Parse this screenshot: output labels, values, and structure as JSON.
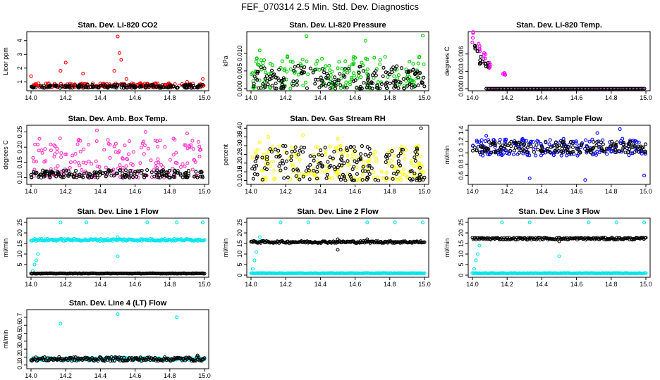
{
  "figure": {
    "title": "FEF_070314  2.5 Min. Std. Dev. Diagnostics"
  },
  "chart_data": [
    {
      "type": "scatter",
      "title": "Stan. Dev. Li-820 CO2",
      "xlabel": "",
      "ylabel": "Licor ppm",
      "xlim": [
        14.0,
        15.0
      ],
      "ylim": [
        0.5,
        4.5
      ],
      "xticks": [
        "14.0",
        "14.2",
        "14.4",
        "14.6",
        "14.8",
        "15.0"
      ],
      "yticks": [
        "1",
        "2",
        "3",
        "4"
      ],
      "series": [
        {
          "color": "#ff0000",
          "profile": {
            "base": [
              0.6,
              0.9
            ],
            "spikes": [
              [
                14.2,
                2.4
              ],
              [
                14.17,
                1.8
              ],
              [
                14.3,
                1.6
              ],
              [
                14.5,
                4.3
              ],
              [
                14.51,
                3.1
              ],
              [
                14.52,
                2.6
              ],
              [
                14.48,
                1.8
              ],
              [
                14.55,
                1.2
              ],
              [
                14.0,
                1.4
              ],
              [
                14.9,
                1.0
              ],
              [
                14.99,
                1.2
              ]
            ]
          }
        },
        {
          "color": "#000000",
          "profile": {
            "base": [
              0.55,
              0.8
            ],
            "spikes": []
          }
        }
      ]
    },
    {
      "type": "scatter",
      "title": "Stan. Dev. Li-820 Pressure",
      "xlabel": "",
      "ylabel": "kPa",
      "xlim": [
        14.0,
        15.0
      ],
      "ylim": [
        0.0,
        0.0155
      ],
      "xticks": [
        "14.0",
        "14.2",
        "14.4",
        "14.6",
        "14.8",
        "15.0"
      ],
      "yticks": [
        "0.000",
        "0.005",
        "0.010"
      ],
      "series": [
        {
          "color": "#00cc00",
          "profile": {
            "base": [
              0.0,
              0.0095
            ],
            "spikes": [
              [
                14.32,
                0.0148
              ],
              [
                14.66,
                0.0135
              ],
              [
                14.99,
                0.015
              ],
              [
                14.05,
                0.0108
              ]
            ]
          }
        },
        {
          "color": "#000000",
          "profile": {
            "base": [
              0.0,
              0.0065
            ],
            "spikes": []
          }
        }
      ]
    },
    {
      "type": "scatter",
      "title": "Stan. Dev. Li-820 Temp.",
      "xlabel": "",
      "ylabel": "degrees C",
      "xlim": [
        14.0,
        15.0
      ],
      "ylim": [
        0.0,
        0.0095
      ],
      "xticks": [
        "14.0",
        "14.2",
        "14.4",
        "14.6",
        "14.8",
        "15.0"
      ],
      "yticks": [
        "0.000",
        "0.003",
        "0.006"
      ],
      "series": [
        {
          "color": "#ff00ff",
          "profile": {
            "decay": [
              [
                14.0,
                0.0092
              ],
              [
                14.04,
                0.007
              ],
              [
                14.07,
                0.0055
              ],
              [
                14.1,
                0.004
              ],
              [
                14.18,
                0.0028
              ]
            ],
            "flat": 0.0
          }
        },
        {
          "color": "#000000",
          "profile": {
            "decay": [
              [
                14.02,
                0.0068
              ],
              [
                14.05,
                0.005
              ],
              [
                14.08,
                0.004
              ]
            ],
            "flat": 0.0
          }
        }
      ]
    },
    {
      "type": "scatter",
      "title": "Stan. Dev. Amb. Box Temp.",
      "xlabel": "",
      "ylabel": "degrees C",
      "xlim": [
        14.0,
        15.0
      ],
      "ylim": [
        0.085,
        0.265
      ],
      "xticks": [
        "14.0",
        "14.2",
        "14.4",
        "14.6",
        "14.8",
        "15.0"
      ],
      "yticks": [
        "0.10",
        "0.15",
        "0.20",
        "0.25"
      ],
      "series": [
        {
          "color": "#ff33cc",
          "profile": {
            "base": [
              0.1,
              0.23
            ],
            "spikes": [
              [
                14.38,
                0.255
              ],
              [
                14.66,
                0.25
              ],
              [
                14.9,
                0.245
              ]
            ]
          }
        },
        {
          "color": "#000000",
          "profile": {
            "base": [
              0.1,
              0.125
            ],
            "spikes": []
          }
        }
      ]
    },
    {
      "type": "scatter",
      "title": "Stan. Dev. Gas Stream RH",
      "xlabel": "",
      "ylabel": "percent",
      "xlim": [
        14.0,
        15.0
      ],
      "ylim": [
        0.09,
        0.405
      ],
      "xticks": [
        "14.0",
        "14.2",
        "14.4",
        "14.6",
        "14.8",
        "15.0"
      ],
      "yticks": [
        "0.10",
        "0.15",
        "0.20",
        "0.25",
        "0.30",
        "0.35",
        "0.40"
      ],
      "series": [
        {
          "color": "#ffff00",
          "profile": {
            "base": [
              0.1,
              0.3
            ],
            "spikes": [
              [
                14.05,
                0.32
              ],
              [
                14.1,
                0.35
              ],
              [
                14.3,
                0.36
              ],
              [
                14.5,
                0.34
              ]
            ]
          }
        },
        {
          "color": "#000000",
          "profile": {
            "base": [
              0.1,
              0.3
            ],
            "spikes": [
              [
                14.98,
                0.4
              ]
            ]
          }
        }
      ]
    },
    {
      "type": "scatter",
      "title": "Stan. Dev. Sample Flow",
      "xlabel": "",
      "ylabel": "ml/min",
      "xlim": [
        14.0,
        15.0
      ],
      "ylim": [
        0.48,
        1.45
      ],
      "xticks": [
        "14.0",
        "14.2",
        "14.4",
        "14.6",
        "14.8",
        "15.0"
      ],
      "yticks": [
        "0.6",
        "0.8",
        "1.0",
        "1.2",
        "1.4"
      ],
      "series": [
        {
          "color": "#0000ff",
          "profile": {
            "base": [
              0.95,
              1.25
            ],
            "spikes": [
              [
                14.33,
                0.55
              ],
              [
                14.65,
                0.52
              ],
              [
                14.99,
                0.6
              ],
              [
                14.85,
                1.42
              ],
              [
                14.72,
                1.35
              ],
              [
                14.08,
                1.3
              ]
            ]
          }
        },
        {
          "color": "#000000",
          "profile": {
            "base": [
              1.0,
              1.2
            ],
            "spikes": []
          }
        }
      ]
    },
    {
      "type": "scatter",
      "title": "Stan. Dev. Line 1 Flow",
      "xlabel": "",
      "ylabel": "ml/min",
      "xlim": [
        14.0,
        15.0
      ],
      "ylim": [
        0,
        26
      ],
      "xticks": [
        "14.0",
        "14.2",
        "14.4",
        "14.6",
        "14.8",
        "15.0"
      ],
      "yticks": [
        "5",
        "10",
        "15",
        "20",
        "25"
      ],
      "series": [
        {
          "color": "#00e5ee",
          "profile": {
            "band": [
              16.2,
              17.2
            ],
            "ramp": [
              [
                14.01,
                2
              ],
              [
                14.02,
                5
              ],
              [
                14.03,
                7
              ],
              [
                14.04,
                10
              ]
            ],
            "spikes": [
              [
                14.17,
                25
              ],
              [
                14.32,
                25
              ],
              [
                14.67,
                25
              ],
              [
                14.84,
                25
              ],
              [
                14.99,
                25
              ],
              [
                14.5,
                9
              ],
              [
                14.5,
                18
              ]
            ]
          }
        },
        {
          "color": "#000000",
          "profile": {
            "band": [
              0.7,
              0.9
            ],
            "ramp": [],
            "spikes": []
          }
        }
      ]
    },
    {
      "type": "scatter",
      "title": "Stan. Dev. Line 2 Flow",
      "xlabel": "",
      "ylabel": "ml/min",
      "xlim": [
        14.0,
        15.0
      ],
      "ylim": [
        0,
        26
      ],
      "xticks": [
        "14.0",
        "14.2",
        "14.4",
        "14.6",
        "14.8",
        "15.0"
      ],
      "yticks": [
        "0",
        "5",
        "10",
        "15",
        "20",
        "25"
      ],
      "series": [
        {
          "color": "#00e5ee",
          "profile": {
            "band": [
              0.8,
              1.0
            ],
            "ramp": [
              [
                14.01,
                3
              ],
              [
                14.02,
                7
              ],
              [
                14.03,
                11
              ],
              [
                14.04,
                16
              ]
            ],
            "spikes": [
              [
                14.17,
                25
              ],
              [
                14.33,
                25
              ],
              [
                14.67,
                25
              ],
              [
                14.83,
                25
              ],
              [
                14.99,
                25
              ],
              [
                14.05,
                18
              ]
            ]
          }
        },
        {
          "color": "#000000",
          "profile": {
            "band": [
              15.2,
              16.2
            ],
            "ramp": [],
            "spikes": [
              [
                14.5,
                12
              ],
              [
                14.5,
                17
              ],
              [
                14.67,
                17
              ]
            ]
          }
        }
      ]
    },
    {
      "type": "scatter",
      "title": "Stan. Dev. Line 3 Flow",
      "xlabel": "",
      "ylabel": "ml/min",
      "xlim": [
        14.0,
        15.0
      ],
      "ylim": [
        0,
        26
      ],
      "xticks": [
        "14.0",
        "14.2",
        "14.4",
        "14.6",
        "14.8",
        "15.0"
      ],
      "yticks": [
        "0",
        "5",
        "10",
        "15",
        "20",
        "25"
      ],
      "series": [
        {
          "color": "#00e5ee",
          "profile": {
            "band": [
              0.8,
              1.0
            ],
            "ramp": [
              [
                14.01,
                3
              ],
              [
                14.02,
                7
              ],
              [
                14.03,
                10
              ],
              [
                14.04,
                14
              ]
            ],
            "spikes": [
              [
                14.17,
                25
              ],
              [
                14.33,
                25
              ],
              [
                14.67,
                25
              ],
              [
                14.83,
                25
              ],
              [
                14.99,
                25
              ],
              [
                14.5,
                9
              ]
            ]
          }
        },
        {
          "color": "#000000",
          "profile": {
            "band": [
              16.8,
              17.8
            ],
            "ramp": [],
            "spikes": [
              [
                14.5,
                16
              ]
            ]
          }
        }
      ]
    },
    {
      "type": "scatter",
      "title": "Stan. Dev. Line 4 (LT) Flow",
      "xlabel": "",
      "ylabel": "ml/min",
      "xlim": [
        14.0,
        15.0
      ],
      "ylim": [
        0.08,
        0.77
      ],
      "xticks": [
        "14.0",
        "14.2",
        "14.4",
        "14.6",
        "14.8",
        "15.0"
      ],
      "yticks": [
        "0.1",
        "0.2",
        "0.3",
        "0.4",
        "0.5",
        "0.6",
        "0.7"
      ],
      "series": [
        {
          "color": "#00e5ee",
          "profile": {
            "band": [
              0.16,
              0.19
            ],
            "ramp": [],
            "spikes": [
              [
                14.17,
                0.62
              ],
              [
                14.5,
                0.74
              ],
              [
                14.84,
                0.7
              ]
            ]
          }
        },
        {
          "color": "#000000",
          "profile": {
            "band": [
              0.15,
              0.2
            ],
            "ramp": [],
            "spikes": [
              [
                14.96,
                0.22
              ]
            ]
          }
        }
      ]
    }
  ]
}
